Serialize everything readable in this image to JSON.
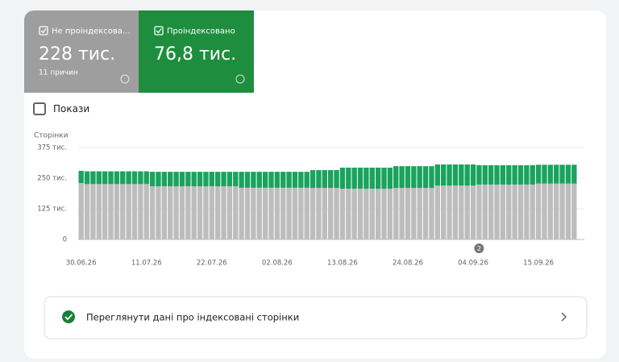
{
  "toggle_label": "Покази",
  "link_text": "Переглянути дані про індексовані сторінки",
  "chart_data": {
    "type": "bar",
    "stacked": true,
    "y_label": "Сторінки",
    "ylim": [
      0,
      375000
    ],
    "yticks": [
      0,
      {
        "value": 125000,
        "label": "125 тис."
      },
      {
        "value": 250000,
        "label": "250 тис."
      },
      {
        "value": 375000,
        "label": "375 тис."
      }
    ],
    "grid": true,
    "categories": [
      "30.06.26",
      null,
      null,
      null,
      null,
      null,
      null,
      null,
      null,
      null,
      null,
      "11.07.26",
      null,
      null,
      null,
      null,
      null,
      null,
      null,
      null,
      null,
      null,
      "22.07.26",
      null,
      null,
      null,
      null,
      null,
      null,
      null,
      null,
      null,
      null,
      "02.08.26",
      null,
      null,
      null,
      null,
      null,
      null,
      null,
      null,
      null,
      null,
      "13.08.26",
      null,
      null,
      null,
      null,
      null,
      null,
      null,
      null,
      null,
      null,
      "24.08.26",
      null,
      null,
      null,
      null,
      null,
      null,
      null,
      null,
      null,
      null,
      "04.09.26",
      null,
      null,
      null,
      null,
      null,
      null,
      null,
      null,
      null,
      null,
      "15.09.26",
      null,
      null,
      null,
      null,
      null,
      null
    ],
    "series": [
      {
        "name": "Не проіндексова…",
        "summary": "228 тис.",
        "note": "11 причин",
        "color": "#bdbdbd",
        "values": [
          230000,
          226000,
          226000,
          226000,
          226000,
          226000,
          226000,
          226000,
          226000,
          226000,
          226000,
          226000,
          217000,
          217000,
          217000,
          217000,
          217000,
          217000,
          217000,
          217000,
          217000,
          217000,
          217000,
          217000,
          217000,
          217000,
          217000,
          211000,
          211000,
          211000,
          211000,
          211000,
          211000,
          211000,
          211000,
          211000,
          211000,
          211000,
          211000,
          210000,
          210000,
          210000,
          210000,
          210000,
          207000,
          207000,
          207000,
          207000,
          207000,
          207000,
          207000,
          207000,
          207000,
          210000,
          210000,
          210000,
          210000,
          210000,
          210000,
          210000,
          220000,
          220000,
          220000,
          220000,
          220000,
          220000,
          220000,
          224000,
          224000,
          224000,
          224000,
          224000,
          224000,
          224000,
          224000,
          224000,
          224000,
          228000,
          228000,
          228000,
          228000,
          228000,
          228000,
          228000
        ]
      },
      {
        "name": "Проіндексовано",
        "summary": "76,8 тис.",
        "color": "#1aa35f",
        "values": [
          50000,
          52000,
          52000,
          52000,
          52000,
          52000,
          52000,
          52000,
          52000,
          52000,
          52000,
          52000,
          59000,
          59000,
          59000,
          59000,
          59000,
          59000,
          59000,
          59000,
          59000,
          59000,
          59000,
          59000,
          59000,
          59000,
          59000,
          65000,
          65000,
          65000,
          65000,
          65000,
          65000,
          65000,
          65000,
          65000,
          65000,
          65000,
          65000,
          73000,
          73000,
          73000,
          73000,
          73000,
          86000,
          86000,
          86000,
          86000,
          86000,
          86000,
          86000,
          86000,
          86000,
          89000,
          89000,
          89000,
          89000,
          89000,
          89000,
          89000,
          86000,
          86000,
          86000,
          86000,
          86000,
          86000,
          86000,
          79000,
          79000,
          79000,
          79000,
          79000,
          79000,
          79000,
          79000,
          79000,
          79000,
          76800,
          76800,
          76800,
          76800,
          76800,
          76800,
          76800
        ]
      }
    ],
    "annotations": [
      {
        "index": 67,
        "text": "2"
      }
    ]
  }
}
